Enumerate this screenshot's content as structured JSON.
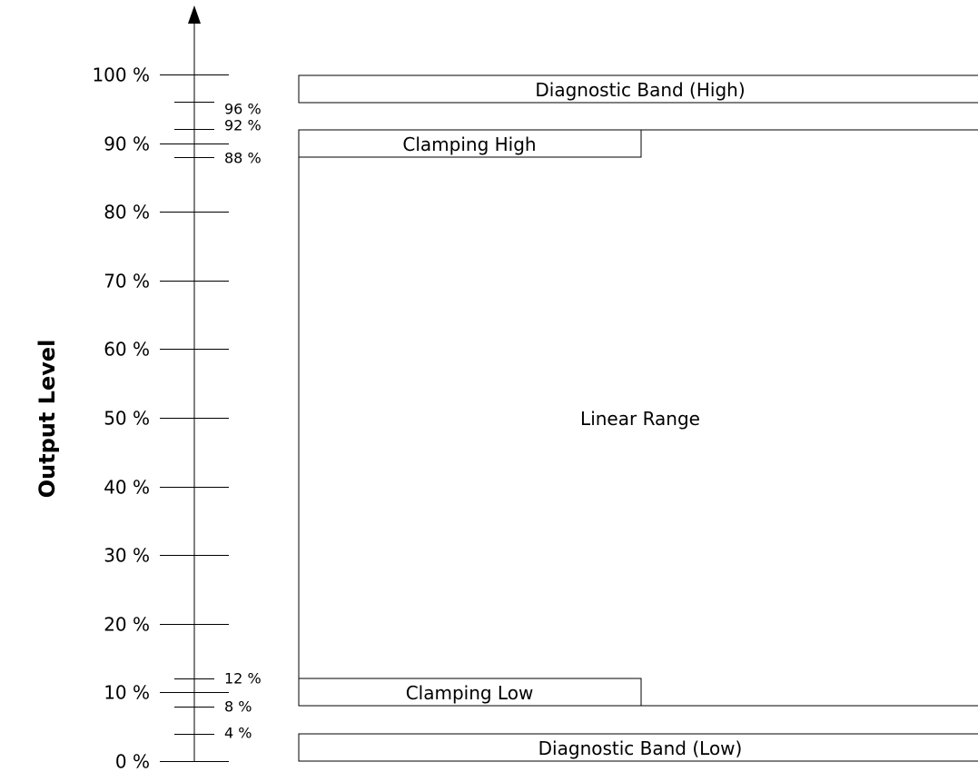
{
  "axis": {
    "title": "Output Level",
    "major_ticks": [
      {
        "value": 0,
        "label": "0 %"
      },
      {
        "value": 10,
        "label": "10 %"
      },
      {
        "value": 20,
        "label": "20 %"
      },
      {
        "value": 30,
        "label": "30 %"
      },
      {
        "value": 40,
        "label": "40 %"
      },
      {
        "value": 50,
        "label": "50 %"
      },
      {
        "value": 60,
        "label": "60 %"
      },
      {
        "value": 70,
        "label": "70 %"
      },
      {
        "value": 80,
        "label": "80 %"
      },
      {
        "value": 90,
        "label": "90 %"
      },
      {
        "value": 100,
        "label": "100 %"
      }
    ],
    "minor_ticks": [
      {
        "value": 4,
        "label": "4 %"
      },
      {
        "value": 8,
        "label": "8 %"
      },
      {
        "value": 12,
        "label": "12 %"
      },
      {
        "value": 88,
        "label": "88 %"
      },
      {
        "value": 92,
        "label": "92 %"
      },
      {
        "value": 96,
        "label": "96 %"
      }
    ]
  },
  "regions": {
    "diagnostic_high": {
      "label": "Diagnostic Band (High)",
      "from": 96,
      "to": 100
    },
    "clamping_high": {
      "label": "Clamping High",
      "from": 88,
      "to": 92
    },
    "linear": {
      "label": "Linear Range",
      "from": 8,
      "to": 92
    },
    "clamping_low": {
      "label": "Clamping Low",
      "from": 8,
      "to": 12
    },
    "diagnostic_low": {
      "label": "Diagnostic Band (Low)",
      "from": 0,
      "to": 4
    }
  }
}
